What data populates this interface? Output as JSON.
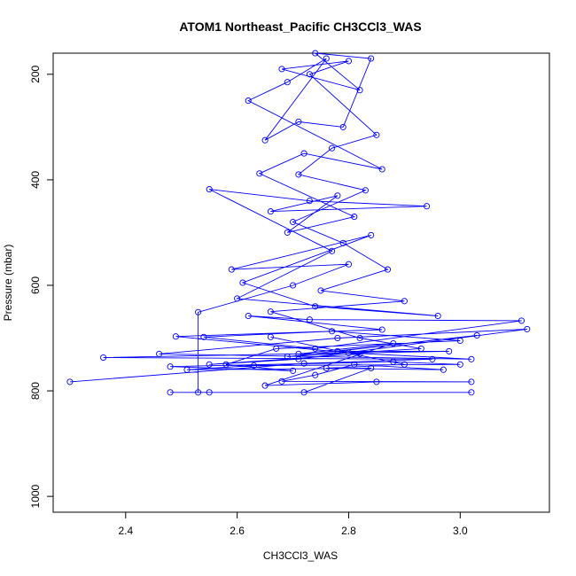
{
  "chart_data": {
    "type": "line",
    "title": "ATOM1 Northeast_Pacific CH3CCl3_WAS",
    "xlabel": "CH3CCl3_WAS",
    "ylabel": "Pressure (mbar)",
    "xlim": [
      2.27,
      3.16
    ],
    "ylim": [
      1030,
      160
    ],
    "y_reversed": true,
    "x_ticks": [
      2.4,
      2.6,
      2.8,
      3.0
    ],
    "x_tick_labels": [
      "2.4",
      "2.6",
      "2.8",
      "3.0"
    ],
    "y_ticks": [
      200,
      400,
      600,
      800,
      1000
    ],
    "y_tick_labels": [
      "200",
      "400",
      "600",
      "800",
      "1000"
    ],
    "grid": false,
    "colors": {
      "series": "#0000ff",
      "axes": "#000000"
    },
    "series": [
      {
        "marker": "open-circle",
        "points": [
          [
            2.3,
            783
          ],
          [
            2.72,
            748
          ],
          [
            2.95,
            740
          ],
          [
            2.36,
            737
          ],
          [
            2.8,
            728
          ],
          [
            3.02,
            740
          ],
          [
            2.46,
            730
          ],
          [
            2.78,
            700
          ],
          [
            3.12,
            683
          ],
          [
            2.71,
            740
          ],
          [
            2.55,
            750
          ],
          [
            2.82,
            730
          ],
          [
            2.49,
            697
          ],
          [
            2.86,
            684
          ],
          [
            2.62,
            658
          ],
          [
            2.73,
            665
          ],
          [
            3.11,
            667
          ],
          [
            2.74,
            720
          ],
          [
            2.54,
            698
          ],
          [
            2.77,
            687
          ],
          [
            3.0,
            705
          ],
          [
            2.67,
            720
          ],
          [
            2.58,
            750
          ],
          [
            2.7,
            762
          ],
          [
            2.48,
            754
          ],
          [
            2.88,
            745
          ],
          [
            3.0,
            750
          ],
          [
            2.63,
            752
          ],
          [
            2.51,
            760
          ],
          [
            2.84,
            757
          ],
          [
            2.72,
            803
          ],
          [
            3.02,
            803
          ],
          [
            2.48,
            803
          ],
          [
            2.55,
            803
          ],
          [
            2.53,
            803
          ],
          [
            2.53,
            651
          ],
          [
            2.7,
            600
          ],
          [
            2.8,
            560
          ],
          [
            2.59,
            570
          ],
          [
            2.84,
            505
          ],
          [
            2.61,
            595
          ],
          [
            2.74,
            640
          ],
          [
            2.96,
            658
          ],
          [
            2.6,
            625
          ],
          [
            2.77,
            535
          ],
          [
            2.55,
            418
          ],
          [
            2.73,
            440
          ],
          [
            2.94,
            450
          ],
          [
            2.66,
            460
          ],
          [
            2.78,
            430
          ],
          [
            2.69,
            500
          ],
          [
            2.81,
            470
          ],
          [
            2.64,
            388
          ],
          [
            2.72,
            350
          ],
          [
            2.86,
            380
          ],
          [
            2.62,
            250
          ],
          [
            2.69,
            215
          ],
          [
            2.76,
            170
          ],
          [
            2.65,
            325
          ],
          [
            2.71,
            290
          ],
          [
            2.79,
            300
          ],
          [
            2.84,
            170
          ],
          [
            2.74,
            160
          ],
          [
            2.82,
            230
          ],
          [
            2.68,
            190
          ],
          [
            2.8,
            175
          ],
          [
            2.73,
            200
          ],
          [
            2.85,
            315
          ],
          [
            2.77,
            340
          ],
          [
            2.71,
            390
          ],
          [
            2.83,
            420
          ],
          [
            2.7,
            480
          ],
          [
            2.79,
            520
          ],
          [
            2.87,
            570
          ],
          [
            2.75,
            610
          ],
          [
            2.9,
            630
          ],
          [
            2.66,
            650
          ],
          [
            2.82,
            700
          ],
          [
            2.93,
            720
          ],
          [
            2.69,
            735
          ],
          [
            3.03,
            695
          ],
          [
            2.78,
            725
          ],
          [
            2.98,
            725
          ],
          [
            2.71,
            730
          ],
          [
            2.88,
            710
          ],
          [
            2.65,
            790
          ],
          [
            2.85,
            783
          ],
          [
            3.02,
            783
          ],
          [
            2.68,
            782
          ],
          [
            2.74,
            770
          ],
          [
            2.81,
            750
          ],
          [
            2.97,
            760
          ],
          [
            2.76,
            757
          ],
          [
            2.9,
            750
          ],
          [
            2.66,
            698
          ]
        ]
      }
    ]
  }
}
